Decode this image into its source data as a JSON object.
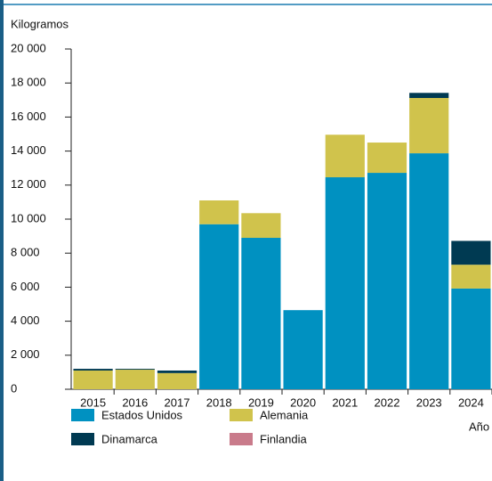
{
  "chart_data": {
    "type": "stacked_bar",
    "y_label": "Kilogramos",
    "x_label": "Año",
    "categories": [
      "2015",
      "2016",
      "2017",
      "2018",
      "2019",
      "2020",
      "2021",
      "2022",
      "2023",
      "2024"
    ],
    "series": [
      {
        "name": "Estados Unidos",
        "color": "#0091c1",
        "values": [
          0,
          0,
          0,
          9700,
          8900,
          4650,
          12460,
          12720,
          13870,
          5920
        ]
      },
      {
        "name": "Alemania",
        "color": "#d0c34c",
        "values": [
          1100,
          1150,
          950,
          1400,
          1450,
          0,
          2500,
          1780,
          3250,
          1400
        ]
      },
      {
        "name": "Dinamarca",
        "color": "#003a52",
        "values": [
          100,
          50,
          150,
          0,
          0,
          0,
          0,
          0,
          300,
          1400
        ]
      },
      {
        "name": "Finlandia",
        "color": "#c97b8b",
        "values": [
          0,
          0,
          0,
          0,
          0,
          0,
          0,
          0,
          0,
          0
        ]
      }
    ],
    "ylim": [
      0,
      20000
    ],
    "yticks": [
      0,
      {
        "value": 2000,
        "label": "2 000"
      },
      {
        "value": 4000,
        "label": "4 000"
      },
      {
        "value": 6000,
        "label": "6 000"
      },
      {
        "value": 8000,
        "label": "8 000"
      },
      {
        "value": 10000,
        "label": "10 000"
      },
      {
        "value": 12000,
        "label": "12 000"
      },
      {
        "value": 14000,
        "label": "14 000"
      },
      {
        "value": 16000,
        "label": "16 000"
      },
      {
        "value": 18000,
        "label": "18 000"
      },
      {
        "value": 20000,
        "label": "20 000"
      }
    ]
  }
}
